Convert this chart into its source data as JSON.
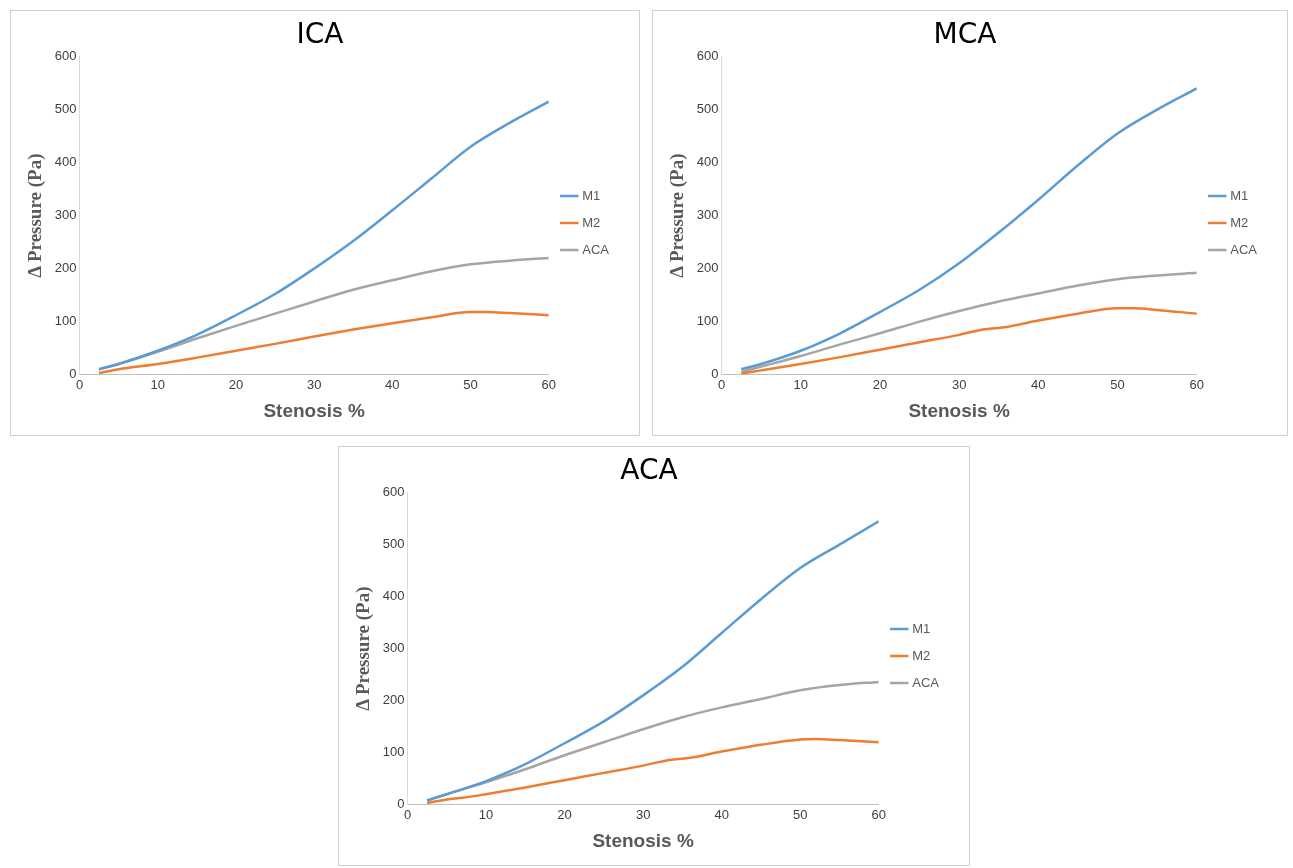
{
  "chart_data": [
    {
      "type": "line",
      "title": "ICA",
      "xlabel": "Stenosis %",
      "ylabel": "Δ Pressure (Pa)",
      "xlim": [
        0,
        60
      ],
      "xticks": [
        0,
        10,
        20,
        30,
        40,
        50,
        60
      ],
      "ylim": [
        0,
        600
      ],
      "yticks": [
        0,
        100,
        200,
        300,
        400,
        500,
        600
      ],
      "grid": false,
      "legend": "right",
      "marker": "none",
      "series": [
        {
          "name": "M1",
          "color": "#5b9bd5",
          "x": [
            2.5,
            5,
            10,
            15,
            20,
            25,
            30,
            35,
            40,
            45,
            50,
            55,
            60
          ],
          "values": [
            10,
            20,
            45,
            75,
            112,
            152,
            200,
            252,
            310,
            370,
            430,
            475,
            515
          ]
        },
        {
          "name": "M2",
          "color": "#ed7d31",
          "x": [
            2.5,
            5,
            10,
            15,
            20,
            25,
            30,
            35,
            40,
            45,
            50,
            52,
            55,
            60
          ],
          "values": [
            3,
            10,
            20,
            32,
            45,
            58,
            72,
            85,
            97,
            108,
            118,
            118,
            116,
            112
          ]
        },
        {
          "name": "ACA",
          "color": "#a5a5a5",
          "x": [
            2.5,
            5,
            10,
            15,
            20,
            25,
            30,
            35,
            40,
            45,
            50,
            55,
            60
          ],
          "values": [
            10,
            20,
            43,
            68,
            92,
            115,
            138,
            160,
            178,
            195,
            208,
            215,
            220
          ]
        }
      ]
    },
    {
      "type": "line",
      "title": "MCA",
      "xlabel": "Stenosis %",
      "ylabel": "Δ Pressure (Pa)",
      "xlim": [
        0,
        60
      ],
      "xticks": [
        0,
        10,
        20,
        30,
        40,
        50,
        60
      ],
      "ylim": [
        0,
        600
      ],
      "yticks": [
        0,
        100,
        200,
        300,
        400,
        500,
        600
      ],
      "grid": false,
      "legend": "right",
      "marker": "none",
      "series": [
        {
          "name": "M1",
          "color": "#5b9bd5",
          "x": [
            2.5,
            5,
            10,
            15,
            20,
            25,
            30,
            35,
            40,
            45,
            50,
            55,
            60
          ],
          "values": [
            10,
            20,
            45,
            78,
            118,
            160,
            210,
            268,
            330,
            395,
            455,
            500,
            540
          ]
        },
        {
          "name": "M2",
          "color": "#ed7d31",
          "x": [
            2.5,
            5,
            10,
            15,
            20,
            25,
            30,
            33,
            36,
            40,
            45,
            50,
            52,
            55,
            60
          ],
          "values": [
            2,
            8,
            20,
            33,
            47,
            61,
            75,
            85,
            90,
            102,
            115,
            125,
            125,
            122,
            115
          ]
        },
        {
          "name": "ACA",
          "color": "#a5a5a5",
          "x": [
            2.5,
            5,
            10,
            15,
            20,
            25,
            30,
            35,
            40,
            45,
            50,
            55,
            60
          ],
          "values": [
            5,
            15,
            35,
            57,
            78,
            100,
            120,
            138,
            153,
            168,
            180,
            187,
            192
          ]
        }
      ]
    },
    {
      "type": "line",
      "title": "ACA",
      "xlabel": "Stenosis %",
      "ylabel": "Δ Pressure (Pa)",
      "xlim": [
        0,
        60
      ],
      "xticks": [
        0,
        10,
        20,
        30,
        40,
        50,
        60
      ],
      "ylim": [
        0,
        600
      ],
      "yticks": [
        0,
        100,
        200,
        300,
        400,
        500,
        600
      ],
      "grid": false,
      "legend": "right",
      "marker": "none",
      "series": [
        {
          "name": "M1",
          "color": "#5b9bd5",
          "x": [
            2.5,
            5,
            10,
            15,
            20,
            25,
            30,
            35,
            40,
            45,
            50,
            55,
            60
          ],
          "values": [
            8,
            20,
            45,
            78,
            118,
            160,
            210,
            265,
            330,
            395,
            455,
            500,
            545
          ]
        },
        {
          "name": "M2",
          "color": "#ed7d31",
          "x": [
            2.5,
            5,
            7,
            10,
            15,
            20,
            25,
            30,
            33,
            36,
            40,
            45,
            50,
            52,
            55,
            60
          ],
          "values": [
            3,
            10,
            13,
            20,
            33,
            47,
            61,
            75,
            85,
            90,
            102,
            115,
            125,
            126,
            124,
            120
          ]
        },
        {
          "name": "ACA",
          "color": "#a5a5a5",
          "x": [
            2.5,
            5,
            10,
            15,
            20,
            25,
            30,
            35,
            40,
            45,
            50,
            55,
            60
          ],
          "values": [
            8,
            20,
            43,
            68,
            95,
            120,
            145,
            168,
            187,
            203,
            220,
            230,
            236
          ]
        }
      ]
    }
  ]
}
